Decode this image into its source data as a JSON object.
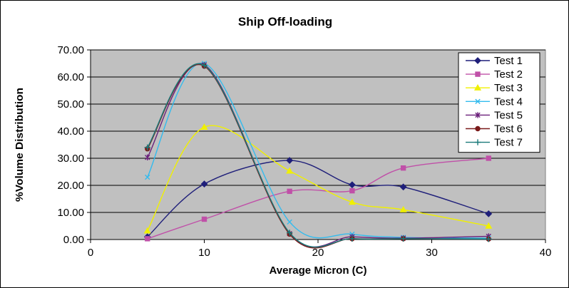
{
  "chart_data": {
    "type": "line",
    "title": "Ship Off-loading",
    "xlabel": "Average Micron (C)",
    "ylabel": "%Volume Distribution",
    "xlim": [
      0,
      40
    ],
    "ylim": [
      0,
      70
    ],
    "x_ticks": [
      "0",
      "10",
      "20",
      "30",
      "40"
    ],
    "y_ticks": [
      "0.00",
      "10.00",
      "20.00",
      "30.00",
      "40.00",
      "50.00",
      "60.00",
      "70.00"
    ],
    "grid": true,
    "legend_position": "top-right",
    "x": [
      5,
      10,
      17.5,
      23,
      27.5,
      35
    ],
    "series": [
      {
        "name": "Test 1",
        "color": "#1f1f7a",
        "marker": "diamond",
        "values": [
          1.0,
          20.5,
          29.2,
          20.2,
          19.4,
          9.5
        ]
      },
      {
        "name": "Test 2",
        "color": "#c050a8",
        "marker": "square",
        "values": [
          0.3,
          7.5,
          17.8,
          18.0,
          26.4,
          30.0
        ]
      },
      {
        "name": "Test 3",
        "color": "#f0f000",
        "marker": "triangle",
        "values": [
          3.2,
          41.5,
          25.3,
          13.8,
          11.0,
          5.0
        ]
      },
      {
        "name": "Test 4",
        "color": "#33bbee",
        "marker": "x",
        "values": [
          23.0,
          65.0,
          6.5,
          2.0,
          0.8,
          0.5
        ]
      },
      {
        "name": "Test 5",
        "color": "#6a1f7a",
        "marker": "star",
        "values": [
          30.3,
          64.5,
          2.2,
          1.0,
          0.5,
          1.2
        ]
      },
      {
        "name": "Test 6",
        "color": "#7a1a1a",
        "marker": "circle",
        "values": [
          33.5,
          64.0,
          2.0,
          0.3,
          0.3,
          0.2
        ]
      },
      {
        "name": "Test 7",
        "color": "#1a7a7a",
        "marker": "plus",
        "values": [
          34.0,
          64.3,
          2.5,
          0.3,
          0.3,
          0.2
        ]
      }
    ]
  },
  "colors": {
    "plot_bg": "#c0c0c0",
    "grid": "#000000"
  }
}
